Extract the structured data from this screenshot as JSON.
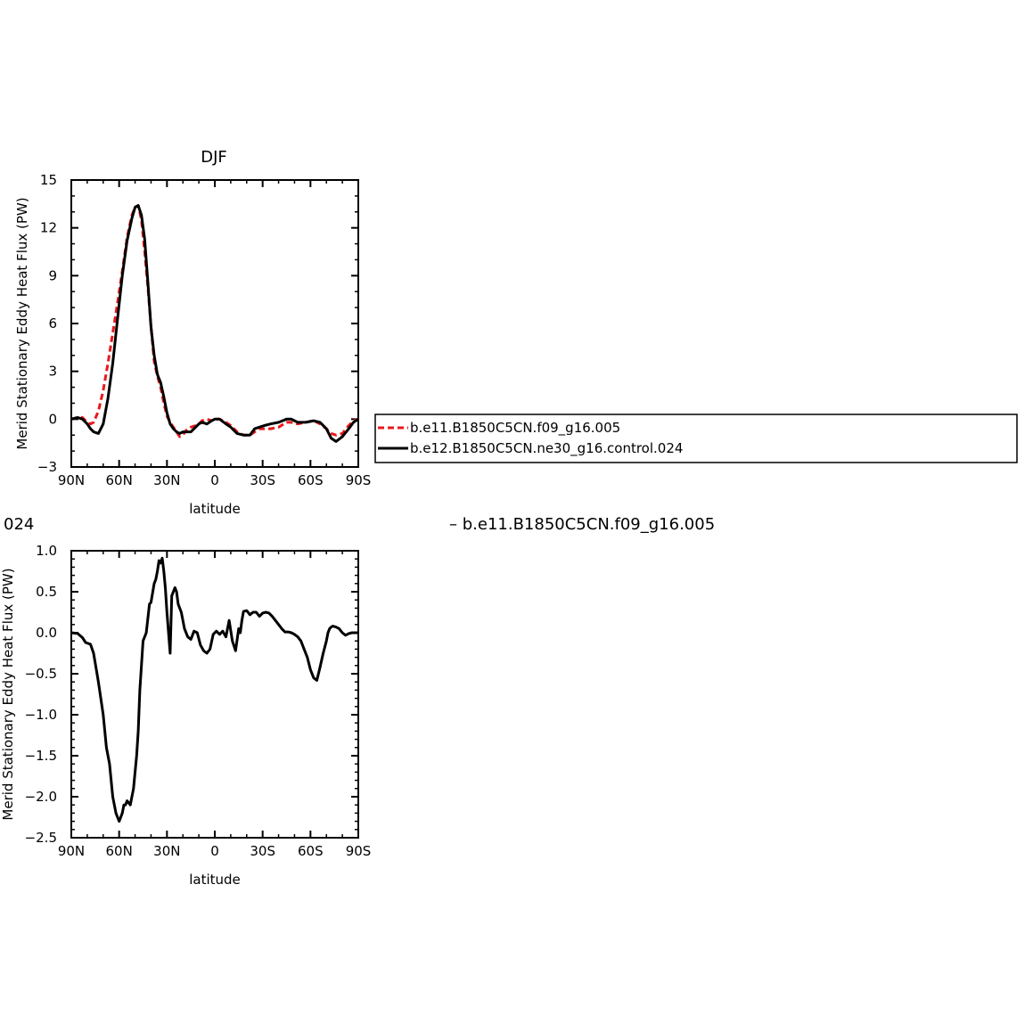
{
  "chart_data": [
    {
      "type": "line",
      "title": "DJF",
      "xlabel": "latitude",
      "ylabel": "Merid Stationary Eddy Heat Flux (PW)",
      "xlim": [
        90,
        -90
      ],
      "ylim": [
        -3,
        15
      ],
      "xticks": [
        90,
        60,
        30,
        0,
        -30,
        -60,
        -90
      ],
      "xtick_labels": [
        "90N",
        "60N",
        "30N",
        "0",
        "30S",
        "60S",
        "90S"
      ],
      "yticks": [
        -3,
        0,
        3,
        6,
        9,
        12,
        15
      ],
      "ytick_labels": [
        "−3",
        "0",
        "3",
        "6",
        "9",
        "12",
        "15"
      ],
      "legend_position": "right",
      "series": [
        {
          "name": "b.e11.B1850C5CN.f09_g16.005",
          "color": "#e8191b",
          "dash": "dashed",
          "x": [
            90,
            86,
            83,
            80,
            78,
            76,
            73,
            70,
            67,
            64,
            61,
            58,
            55,
            52,
            50,
            48,
            46,
            44,
            42,
            40,
            38,
            36,
            34,
            32,
            30,
            28,
            26,
            24,
            22,
            20,
            18,
            15,
            12,
            10,
            8,
            5,
            2,
            0,
            -3,
            -7,
            -10,
            -14,
            -18,
            -22,
            -25,
            -28,
            -31,
            -35,
            -40,
            -45,
            -48,
            -52,
            -57,
            -62,
            -66,
            -70,
            -73,
            -76,
            -80,
            -84,
            -87,
            -90
          ],
          "y": [
            0,
            0.1,
            0.1,
            -0.2,
            -0.3,
            -0.2,
            0.5,
            1.8,
            3.5,
            5.4,
            7.3,
            9.3,
            11.4,
            12.8,
            13.3,
            13.4,
            12.5,
            10.5,
            8.3,
            5.8,
            3.6,
            2.7,
            2.0,
            1.0,
            0.2,
            -0.2,
            -0.5,
            -0.8,
            -1.1,
            -1.0,
            -0.7,
            -0.5,
            -0.4,
            -0.3,
            -0.1,
            0.0,
            -0.1,
            0.0,
            0.0,
            -0.2,
            -0.4,
            -0.8,
            -1.0,
            -1.0,
            -0.8,
            -0.6,
            -0.6,
            -0.6,
            -0.5,
            -0.2,
            -0.2,
            -0.3,
            -0.2,
            -0.1,
            -0.3,
            -0.6,
            -0.9,
            -1.0,
            -0.9,
            -0.4,
            -0.1,
            0.0
          ]
        },
        {
          "name": "b.e12.B1850C5CN.ne30_g16.control.024",
          "color": "#000000",
          "dash": "solid",
          "x": [
            90,
            86,
            83,
            80,
            78,
            76,
            73,
            70,
            67,
            64,
            61,
            58,
            55,
            52,
            50,
            48,
            46,
            44,
            42,
            40,
            38,
            36,
            34,
            32,
            30,
            28,
            26,
            24,
            22,
            20,
            18,
            15,
            12,
            10,
            8,
            5,
            2,
            0,
            -3,
            -7,
            -10,
            -14,
            -18,
            -22,
            -25,
            -28,
            -31,
            -35,
            -40,
            -45,
            -48,
            -52,
            -57,
            -62,
            -66,
            -70,
            -73,
            -76,
            -80,
            -84,
            -87,
            -90
          ],
          "y": [
            0,
            0.1,
            0.0,
            -0.3,
            -0.6,
            -0.8,
            -0.9,
            -0.3,
            1.3,
            3.5,
            6.3,
            9.0,
            11.2,
            12.6,
            13.3,
            13.4,
            12.8,
            11.3,
            8.6,
            5.8,
            4.0,
            2.8,
            2.3,
            1.4,
            0.4,
            -0.3,
            -0.6,
            -0.8,
            -0.9,
            -0.8,
            -0.8,
            -0.8,
            -0.5,
            -0.3,
            -0.2,
            -0.3,
            -0.1,
            0.0,
            0.0,
            -0.3,
            -0.5,
            -0.9,
            -1.0,
            -1.0,
            -0.6,
            -0.5,
            -0.4,
            -0.3,
            -0.2,
            0.0,
            0.0,
            -0.2,
            -0.2,
            -0.1,
            -0.2,
            -0.6,
            -1.2,
            -1.4,
            -1.1,
            -0.6,
            -0.2,
            0.0
          ]
        }
      ]
    },
    {
      "type": "line",
      "title": "",
      "title_fragment": "024",
      "xlabel": "latitude",
      "ylabel": "Merid Stationary Eddy Heat Flux (PW)",
      "xlim": [
        90,
        -90
      ],
      "ylim": [
        -2.5,
        1.0
      ],
      "xticks": [
        90,
        60,
        30,
        0,
        -30,
        -60,
        -90
      ],
      "xtick_labels": [
        "90N",
        "60N",
        "30N",
        "0",
        "30S",
        "60S",
        "90S"
      ],
      "yticks": [
        -2.5,
        -2.0,
        -1.5,
        -1.0,
        -0.5,
        0.0,
        0.5,
        1.0
      ],
      "ytick_labels": [
        "−2.5",
        "−2.0",
        "−1.5",
        "−1.0",
        "−0.5",
        "0.0",
        "0.5",
        "1.0"
      ],
      "legend_fragment": "b.e11.B1850C5CN.f09_g16.005",
      "series": [
        {
          "color": "#000000",
          "x": [
            90,
            86,
            83,
            81,
            78,
            76,
            73,
            70,
            68,
            66,
            64,
            62,
            61,
            60,
            59,
            58,
            57,
            56,
            55,
            53,
            51,
            49,
            48,
            47,
            46,
            45,
            43,
            41,
            40,
            38,
            37,
            36,
            35,
            34,
            33,
            32,
            31,
            30,
            29,
            28,
            27,
            25,
            24,
            23,
            21,
            19,
            17,
            15,
            13,
            11,
            9,
            7,
            5,
            3,
            1,
            -1,
            -3,
            -5,
            -7,
            -9,
            -11,
            -13,
            -15,
            -16,
            -17,
            -18,
            -20,
            -22,
            -24,
            -26,
            -28,
            -30,
            -32,
            -34,
            -36,
            -38,
            -40,
            -42,
            -44,
            -46,
            -48,
            -50,
            -52,
            -54,
            -56,
            -58,
            -60,
            -62,
            -64,
            -66,
            -68,
            -70,
            -71,
            -72,
            -73,
            -74,
            -76,
            -78,
            -80,
            -82,
            -84,
            -86,
            -88,
            -90
          ],
          "y": [
            0,
            -0.01,
            -0.06,
            -0.12,
            -0.14,
            -0.25,
            -0.6,
            -1.0,
            -1.4,
            -1.6,
            -2.0,
            -2.2,
            -2.25,
            -2.3,
            -2.25,
            -2.2,
            -2.1,
            -2.1,
            -2.05,
            -2.1,
            -1.9,
            -1.5,
            -1.2,
            -0.7,
            -0.4,
            -0.1,
            0.0,
            0.35,
            0.37,
            0.6,
            0.65,
            0.75,
            0.88,
            0.85,
            0.91,
            0.75,
            0.55,
            0.25,
            0.0,
            -0.25,
            0.45,
            0.55,
            0.5,
            0.35,
            0.25,
            0.05,
            -0.05,
            -0.08,
            0.02,
            0.0,
            -0.15,
            -0.22,
            -0.25,
            -0.2,
            -0.02,
            0.02,
            -0.02,
            0.02,
            -0.05,
            0.15,
            -0.1,
            -0.22,
            0.05,
            0.0,
            0.15,
            0.26,
            0.27,
            0.22,
            0.25,
            0.25,
            0.2,
            0.24,
            0.25,
            0.24,
            0.2,
            0.15,
            0.1,
            0.05,
            0.01,
            0.01,
            0.0,
            -0.02,
            -0.05,
            -0.1,
            -0.2,
            -0.3,
            -0.45,
            -0.55,
            -0.58,
            -0.42,
            -0.25,
            -0.1,
            0.0,
            0.05,
            0.07,
            0.08,
            0.07,
            0.05,
            0.0,
            -0.03,
            -0.01,
            0.0,
            0.0,
            0.0
          ]
        }
      ]
    }
  ],
  "legend": {
    "items": [
      {
        "label": "b.e11.B1850C5CN.f09_g16.005",
        "color": "#e8191b",
        "dash": "dashed"
      },
      {
        "label": "b.e12.B1850C5CN.ne30_g16.control.024",
        "color": "#000000",
        "dash": "solid"
      }
    ]
  }
}
